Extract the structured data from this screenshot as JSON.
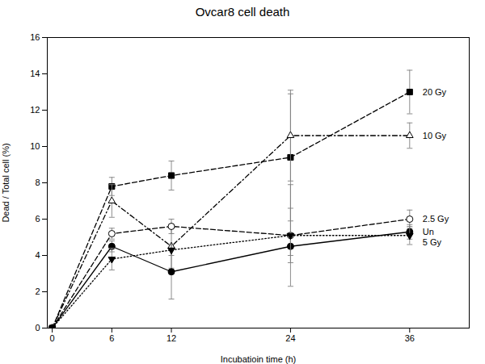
{
  "chart_data": {
    "type": "line",
    "title": "Ovcar8 cell death",
    "xlabel": "Incubatioin time (h)",
    "ylabel": "Dead / Total cell (%)",
    "x": [
      0,
      6,
      12,
      24,
      36
    ],
    "series": [
      {
        "name": "20 Gy",
        "color": "black",
        "line_style": "dashed",
        "marker": "square",
        "values": [
          0,
          7.8,
          8.4,
          9.4,
          13.0
        ],
        "yerr": [
          0,
          0.5,
          0.8,
          3.5,
          1.2
        ]
      },
      {
        "name": "10 Gy",
        "color": "black",
        "line_style": "dashdot",
        "marker": "triangle-up-open",
        "values": [
          0,
          7.0,
          4.5,
          10.6,
          10.6
        ],
        "yerr": [
          0,
          0.9,
          1.2,
          2.5,
          0.7
        ]
      },
      {
        "name": "2.5 Gy",
        "color": "black",
        "line_style": "dashed",
        "marker": "circle-open",
        "values": [
          0,
          5.2,
          5.6,
          5.1,
          6.0
        ],
        "yerr": [
          0,
          0.3,
          0.4,
          2.8,
          0.5
        ]
      },
      {
        "name": "Un",
        "color": "black",
        "line_style": "solid",
        "marker": "circle",
        "values": [
          0,
          4.5,
          3.1,
          4.5,
          5.3
        ],
        "yerr": [
          0,
          0.3,
          1.5,
          0.5,
          0.4
        ]
      },
      {
        "name": "5 Gy",
        "color": "black",
        "line_style": "dotted",
        "marker": "triangle-down",
        "values": [
          0,
          3.8,
          4.3,
          5.1,
          5.1
        ],
        "yerr": [
          0,
          0.6,
          0.3,
          1.5,
          0.5
        ]
      }
    ],
    "annotations": [
      {
        "text": "20 Gy",
        "x": 37.3,
        "y": 13.0
      },
      {
        "text": "10 Gy",
        "x": 37.3,
        "y": 10.6
      },
      {
        "text": "2.5 Gy",
        "x": 37.3,
        "y": 6.0
      },
      {
        "text": "Un",
        "x": 37.3,
        "y": 5.3
      },
      {
        "text": "5 Gy",
        "x": 37.3,
        "y": 5.1
      }
    ],
    "xlim": [
      -0.5,
      42
    ],
    "xticks": [
      0,
      6,
      12,
      24,
      36
    ],
    "ylim": [
      0,
      16
    ],
    "yticks": [
      0,
      2,
      4,
      6,
      8,
      10,
      12,
      14,
      16
    ],
    "grid": false
  }
}
